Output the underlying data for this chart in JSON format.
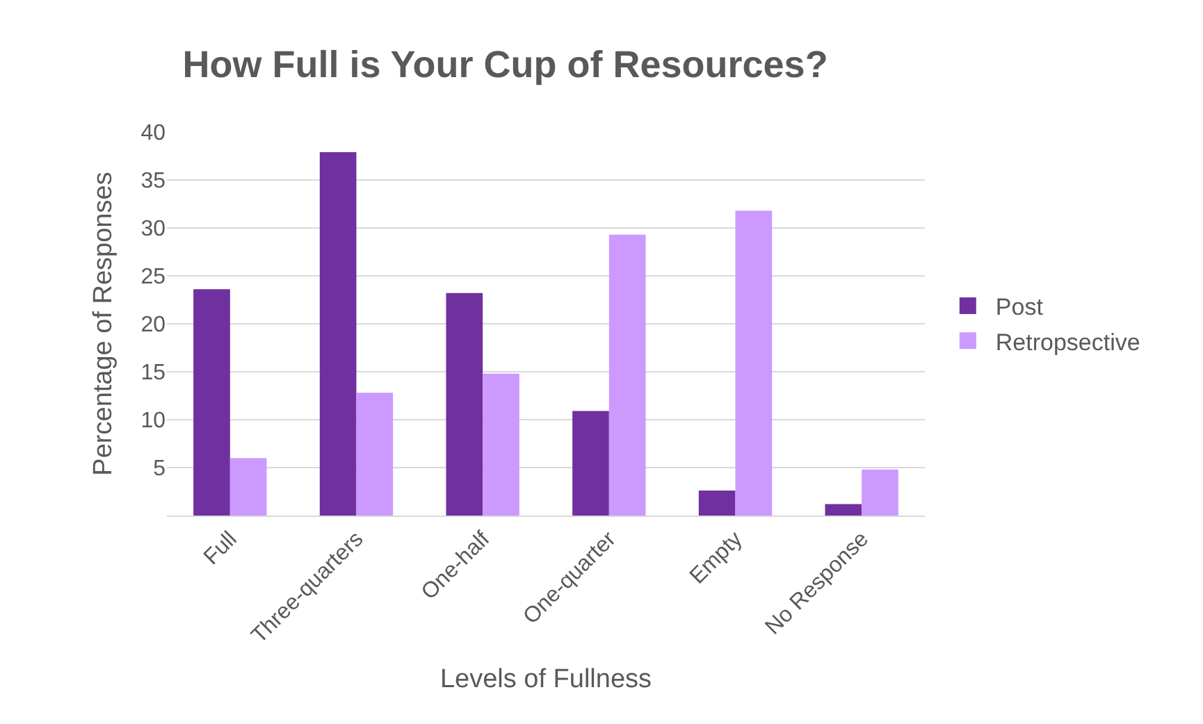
{
  "chart_data": {
    "type": "bar",
    "title": "How Full is Your Cup of Resources?",
    "xlabel": "Levels of Fullness",
    "ylabel": "Percentage of Responses",
    "categories": [
      "Full",
      "Three-quarters",
      "One-half",
      "One-quarter",
      "Empty",
      "No Response"
    ],
    "series": [
      {
        "name": "Post",
        "color": "#7030a0",
        "values": [
          23.6,
          37.9,
          23.2,
          10.9,
          2.6,
          1.2
        ]
      },
      {
        "name": "Retropsective",
        "color": "#cc99ff",
        "values": [
          6.0,
          12.8,
          14.8,
          29.3,
          31.8,
          4.8
        ]
      }
    ],
    "ylim": [
      0,
      40
    ],
    "yticks": [
      5,
      10,
      15,
      20,
      25,
      30,
      35,
      40
    ],
    "grid": "y",
    "legend": "right"
  }
}
